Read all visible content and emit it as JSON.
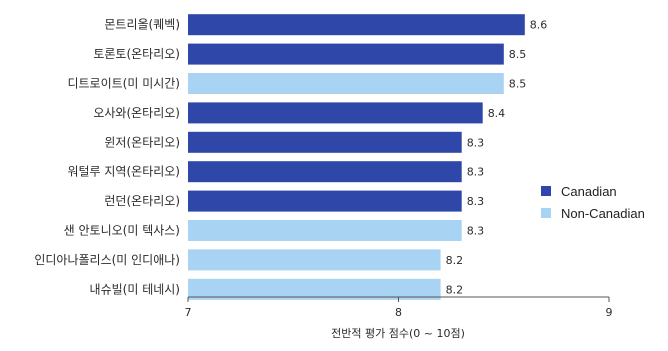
{
  "colors": {
    "canadian": "#2f47a8",
    "non_canadian": "#a9d3f2"
  },
  "chart_data": {
    "type": "bar",
    "orientation": "horizontal",
    "categories": [
      "몬트리올(퀘벡)",
      "토론토(온타리오)",
      "디트로이트(미 미시간)",
      "오사와(온타리오)",
      "윈저(온타리오)",
      "워털루 지역(온타리오)",
      "런던(온타리오)",
      "샌 안토니오(미 텍사스)",
      "인디아나폴리스(미 인디애나)",
      "내슈빌(미 테네시)"
    ],
    "values": [
      8.6,
      8.5,
      8.5,
      8.4,
      8.3,
      8.3,
      8.3,
      8.3,
      8.2,
      8.2
    ],
    "value_labels": [
      "8.6",
      "8.5",
      "8.5",
      "8.4",
      "8.3",
      "8.3",
      "8.3",
      "8.3",
      "8.2",
      "8.2"
    ],
    "groups": [
      "Canadian",
      "Canadian",
      "Non-Canadian",
      "Canadian",
      "Canadian",
      "Canadian",
      "Canadian",
      "Non-Canadian",
      "Non-Canadian",
      "Non-Canadian"
    ],
    "xlim": [
      7,
      9
    ],
    "xticks": [
      "7",
      "8",
      "9"
    ],
    "xlabel": "전반적 평가 점수(0 ~ 10점)",
    "legend": {
      "position": "right",
      "entries": [
        "Canadian",
        "Non-Canadian"
      ]
    },
    "grid": false
  }
}
